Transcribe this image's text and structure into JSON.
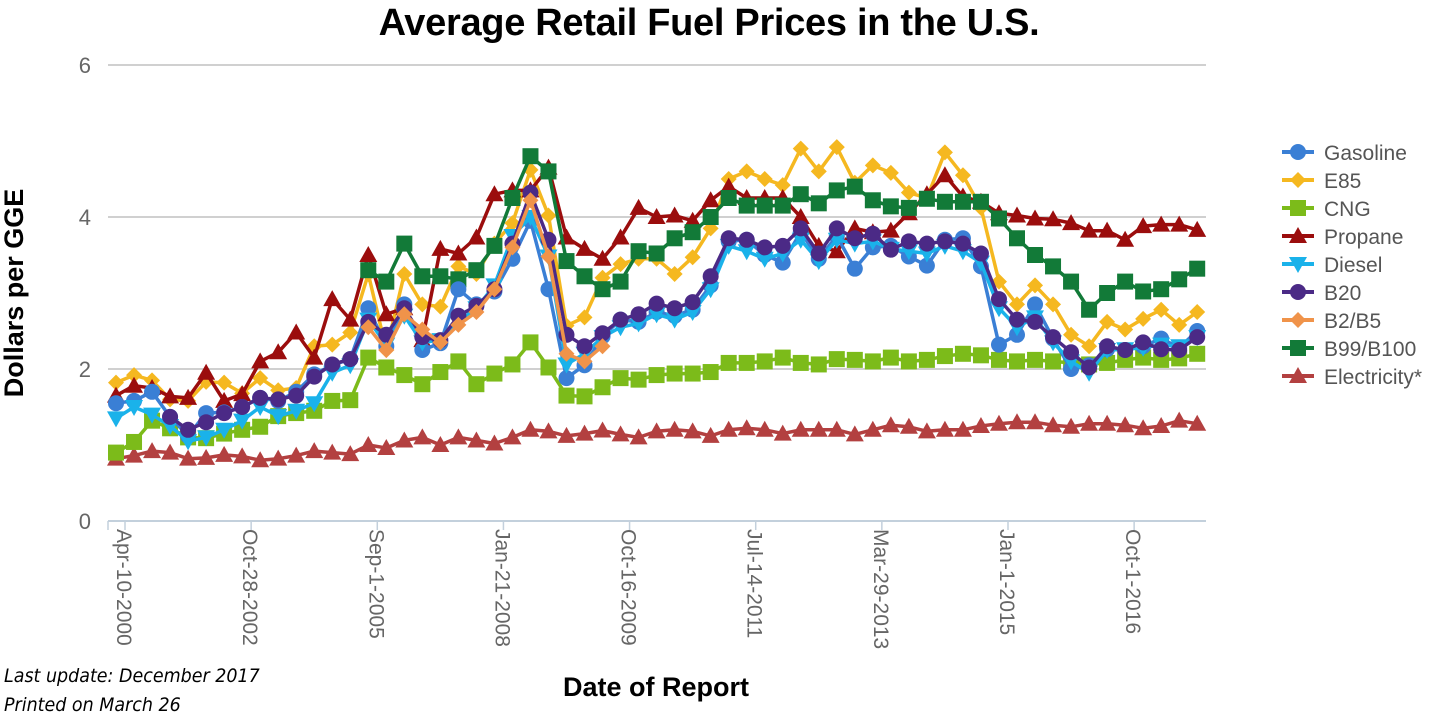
{
  "chart_data": {
    "type": "line",
    "title": "Average Retail Fuel Prices in the U.S.",
    "xlabel": "Date of Report",
    "ylabel": "Dollars per GGE",
    "ylim": [
      0,
      6
    ],
    "yticks": [
      0,
      2,
      4,
      6
    ],
    "grid": true,
    "legend_position": "right",
    "x_tick_labels": [
      {
        "index": 0,
        "label": "Apr-10-2000"
      },
      {
        "index": 7,
        "label": "Oct-28-2002"
      },
      {
        "index": 14,
        "label": "Sep-1-2005"
      },
      {
        "index": 21,
        "label": "Jan-21-2008"
      },
      {
        "index": 28,
        "label": "Oct-16-2009"
      },
      {
        "index": 35,
        "label": "Jul-14-2011"
      },
      {
        "index": 42,
        "label": "Mar-29-2013"
      },
      {
        "index": 49,
        "label": "Jan-1-2015"
      },
      {
        "index": 56,
        "label": "Oct-1-2016"
      }
    ],
    "num_points": 61,
    "series": [
      {
        "name": "Gasoline",
        "color": "#3a7fd5",
        "marker": "circle",
        "values": [
          1.55,
          1.58,
          1.7,
          1.37,
          1.12,
          1.42,
          1.43,
          1.5,
          1.62,
          1.58,
          1.7,
          1.93,
          2.05,
          2.13,
          2.8,
          2.3,
          2.85,
          2.25,
          2.34,
          3.05,
          2.85,
          3.02,
          3.45,
          3.95,
          3.05,
          1.88,
          2.05,
          2.43,
          2.65,
          2.62,
          2.75,
          2.7,
          2.78,
          3.1,
          3.68,
          3.7,
          3.5,
          3.4,
          3.8,
          3.45,
          3.75,
          3.32,
          3.6,
          3.62,
          3.48,
          3.36,
          3.7,
          3.72,
          3.35,
          2.32,
          2.45,
          2.85,
          2.4,
          2.0,
          2.05,
          2.26,
          2.25,
          2.3,
          2.4,
          2.28,
          2.5
        ]
      },
      {
        "name": "E85",
        "color": "#f5b820",
        "marker": "diamond",
        "values": [
          1.82,
          1.92,
          1.85,
          1.6,
          1.58,
          1.83,
          1.82,
          1.68,
          1.88,
          1.72,
          1.75,
          2.3,
          2.32,
          2.48,
          3.25,
          2.25,
          3.25,
          2.85,
          2.82,
          3.35,
          3.25,
          3.65,
          3.92,
          4.62,
          4.02,
          2.57,
          2.68,
          3.2,
          3.38,
          3.45,
          3.45,
          3.25,
          3.47,
          3.85,
          4.5,
          4.6,
          4.5,
          4.42,
          4.9,
          4.6,
          4.92,
          4.45,
          4.68,
          4.58,
          4.32,
          4.25,
          4.85,
          4.55,
          4.12,
          3.15,
          2.85,
          3.1,
          2.85,
          2.45,
          2.3,
          2.62,
          2.52,
          2.66,
          2.78,
          2.58,
          2.75
        ]
      },
      {
        "name": "CNG",
        "color": "#7cbb1a",
        "marker": "square",
        "values": [
          0.9,
          1.04,
          1.32,
          1.22,
          1.1,
          1.09,
          1.15,
          1.2,
          1.24,
          1.38,
          1.42,
          1.45,
          1.58,
          1.59,
          2.15,
          2.02,
          1.92,
          1.8,
          1.96,
          2.1,
          1.8,
          1.94,
          2.06,
          2.35,
          2.02,
          1.65,
          1.64,
          1.76,
          1.88,
          1.86,
          1.92,
          1.94,
          1.94,
          1.96,
          2.08,
          2.08,
          2.1,
          2.15,
          2.08,
          2.06,
          2.13,
          2.12,
          2.1,
          2.15,
          2.1,
          2.12,
          2.17,
          2.2,
          2.18,
          2.12,
          2.1,
          2.12,
          2.1,
          2.08,
          2.06,
          2.08,
          2.12,
          2.15,
          2.12,
          2.14,
          2.2
        ]
      },
      {
        "name": "Propane",
        "color": "#9b0d0d",
        "marker": "triangle-up",
        "values": [
          1.65,
          1.78,
          1.75,
          1.64,
          1.62,
          1.95,
          1.58,
          1.67,
          2.1,
          2.22,
          2.48,
          2.15,
          2.92,
          2.65,
          3.5,
          2.72,
          2.8,
          2.38,
          3.58,
          3.52,
          3.73,
          4.3,
          4.35,
          4.35,
          4.65,
          3.73,
          3.58,
          3.45,
          3.73,
          4.12,
          4.0,
          4.02,
          3.95,
          4.22,
          4.4,
          4.25,
          4.25,
          4.25,
          4.0,
          3.62,
          3.55,
          3.85,
          3.8,
          3.82,
          4.05,
          4.3,
          4.55,
          4.27,
          4.2,
          4.05,
          4.02,
          3.98,
          3.97,
          3.92,
          3.82,
          3.82,
          3.7,
          3.88,
          3.9,
          3.9,
          3.83
        ]
      },
      {
        "name": "Diesel",
        "color": "#1ab2ea",
        "marker": "triangle-down",
        "values": [
          1.35,
          1.5,
          1.4,
          1.25,
          1.05,
          1.1,
          1.2,
          1.32,
          1.5,
          1.38,
          1.45,
          1.55,
          1.95,
          2.05,
          2.65,
          2.32,
          2.7,
          2.35,
          2.38,
          2.62,
          2.8,
          3.1,
          3.75,
          4.0,
          3.48,
          2.06,
          2.2,
          2.42,
          2.55,
          2.6,
          2.72,
          2.65,
          2.75,
          3.05,
          3.62,
          3.55,
          3.45,
          3.52,
          3.7,
          3.42,
          3.7,
          3.65,
          3.68,
          3.58,
          3.55,
          3.52,
          3.62,
          3.55,
          3.4,
          2.8,
          2.55,
          2.68,
          2.35,
          2.1,
          1.95,
          2.25,
          2.26,
          2.28,
          2.32,
          2.3,
          2.42
        ]
      },
      {
        "name": "B20",
        "color": "#4b2a86",
        "marker": "circle",
        "values": [
          null,
          null,
          null,
          1.37,
          1.2,
          1.3,
          1.42,
          1.5,
          1.62,
          1.6,
          1.65,
          1.9,
          2.06,
          2.13,
          2.62,
          2.45,
          2.8,
          2.42,
          2.38,
          2.7,
          2.83,
          3.05,
          3.65,
          4.32,
          3.7,
          2.45,
          2.3,
          2.47,
          2.65,
          2.72,
          2.86,
          2.8,
          2.88,
          3.22,
          3.72,
          3.7,
          3.6,
          3.62,
          3.85,
          3.52,
          3.85,
          3.72,
          3.78,
          3.57,
          3.68,
          3.65,
          3.68,
          3.65,
          3.52,
          2.92,
          2.65,
          2.62,
          2.42,
          2.22,
          2.02,
          2.3,
          2.25,
          2.35,
          2.26,
          2.25,
          2.42
        ]
      },
      {
        "name": "B2/B5",
        "color": "#f0934a",
        "marker": "diamond",
        "values": [
          null,
          null,
          null,
          null,
          null,
          null,
          null,
          null,
          null,
          null,
          null,
          null,
          null,
          null,
          2.55,
          2.25,
          2.72,
          2.52,
          2.35,
          2.58,
          2.75,
          3.05,
          3.6,
          4.22,
          3.48,
          2.2,
          2.1,
          2.3,
          null,
          null,
          null,
          null,
          null,
          null,
          null,
          null,
          null,
          null,
          null,
          null,
          null,
          null,
          null,
          null,
          null,
          null,
          null,
          null,
          null,
          null,
          null,
          null,
          null,
          null,
          null,
          null,
          null,
          null,
          null,
          null,
          null
        ]
      },
      {
        "name": "B99/B100",
        "color": "#127a38",
        "marker": "square",
        "values": [
          null,
          null,
          null,
          null,
          null,
          null,
          null,
          null,
          null,
          null,
          null,
          null,
          null,
          null,
          3.3,
          3.15,
          3.65,
          3.22,
          3.22,
          3.18,
          3.3,
          3.62,
          4.25,
          4.8,
          4.6,
          3.42,
          3.22,
          3.05,
          3.15,
          3.55,
          3.52,
          3.72,
          3.8,
          4.0,
          4.25,
          4.15,
          4.15,
          4.15,
          4.3,
          4.18,
          4.35,
          4.4,
          4.22,
          4.14,
          4.12,
          4.24,
          4.2,
          4.2,
          4.2,
          3.98,
          3.72,
          3.5,
          3.35,
          3.15,
          2.78,
          3.0,
          3.15,
          3.02,
          3.05,
          3.18,
          3.32
        ]
      },
      {
        "name": "Electricity*",
        "color": "#b34040",
        "marker": "triangle-up",
        "values": [
          0.82,
          0.86,
          0.92,
          0.9,
          0.82,
          0.83,
          0.87,
          0.85,
          0.8,
          0.82,
          0.86,
          0.92,
          0.9,
          0.88,
          1.0,
          0.96,
          1.06,
          1.1,
          1.0,
          1.1,
          1.06,
          1.02,
          1.1,
          1.2,
          1.18,
          1.12,
          1.15,
          1.19,
          1.14,
          1.1,
          1.18,
          1.2,
          1.18,
          1.12,
          1.2,
          1.22,
          1.2,
          1.15,
          1.2,
          1.2,
          1.2,
          1.14,
          1.2,
          1.26,
          1.24,
          1.18,
          1.2,
          1.2,
          1.25,
          1.28,
          1.3,
          1.3,
          1.26,
          1.24,
          1.28,
          1.28,
          1.26,
          1.22,
          1.25,
          1.32,
          1.28
        ]
      }
    ]
  },
  "footnotes": {
    "last_update": "Last update: December 2017",
    "printed_on": "Printed on March 26"
  }
}
